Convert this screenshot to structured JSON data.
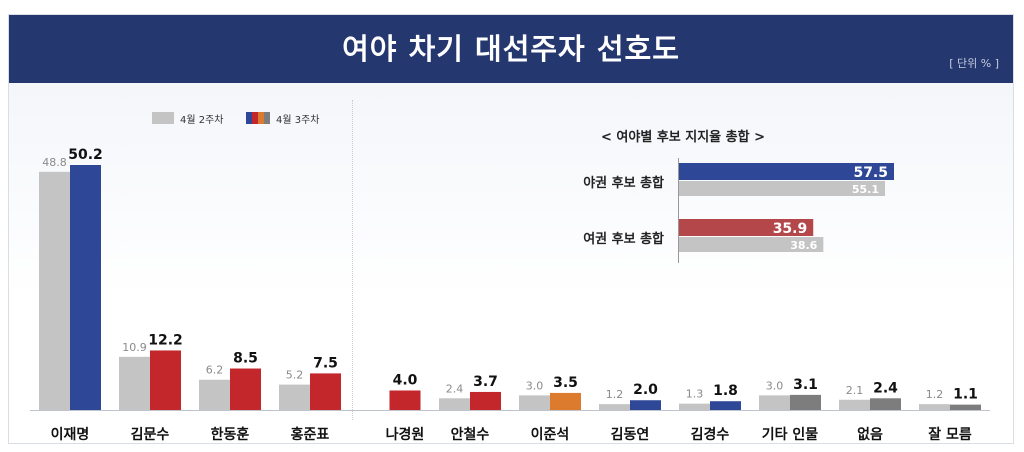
{
  "title": "여야 차기 대선주자 선호도",
  "unit": "[ 단위 % ]",
  "colors": {
    "header": "#24376f",
    "prev": "#c4c4c4",
    "blue": "#2e4797",
    "red": "#c3272c",
    "orange": "#dc7a2e",
    "gray": "#7d7d7d",
    "inset_blue": "#2e4797",
    "inset_red": "#b3474a"
  },
  "chart_data": [
    {
      "type": "bar",
      "legend": [
        "4월 2주차",
        "4월 3주차"
      ],
      "legend_position": "top-left",
      "categories": [
        "이재명",
        "김문수",
        "한동훈",
        "홍준표",
        "나경원",
        "안철수",
        "이준석",
        "김동연",
        "김경수",
        "기타 인물",
        "없음",
        "잘 모름"
      ],
      "series": [
        {
          "name": "4월 2주차",
          "values": [
            48.8,
            10.9,
            6.2,
            5.2,
            null,
            2.4,
            3.0,
            1.2,
            1.3,
            3.0,
            2.1,
            1.2
          ]
        },
        {
          "name": "4월 3주차",
          "values": [
            50.2,
            12.2,
            8.5,
            7.5,
            4.0,
            3.7,
            3.5,
            2.0,
            1.8,
            3.1,
            2.4,
            1.1
          ]
        }
      ],
      "current_bar_colors": [
        "blue",
        "red",
        "red",
        "red",
        "red",
        "red",
        "orange",
        "blue",
        "blue",
        "gray",
        "gray",
        "gray"
      ],
      "grid": false
    },
    {
      "type": "bar",
      "orientation": "horizontal",
      "title": "< 여야별 후보 지지율 총합 >",
      "categories": [
        "야권 후보 총합",
        "여권 후보 총합"
      ],
      "series": [
        {
          "name": "4월 3주차",
          "values": [
            57.5,
            35.9
          ]
        },
        {
          "name": "4월 2주차",
          "values": [
            55.1,
            38.6
          ]
        }
      ],
      "bar_colors": [
        "inset_blue",
        "inset_red"
      ]
    }
  ]
}
